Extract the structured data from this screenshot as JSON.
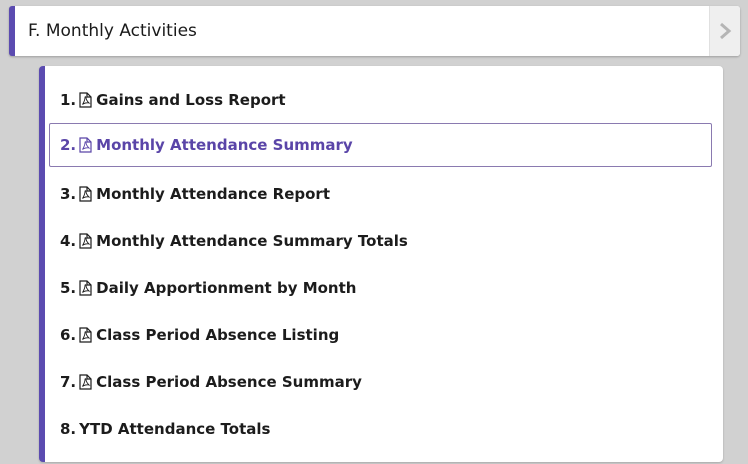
{
  "section": {
    "title": "F. Monthly Activities",
    "chevron_icon": "chevron-right-icon"
  },
  "reports": [
    {
      "number": "1.",
      "label": "Gains and Loss Report",
      "icon": "pdf-icon",
      "active": false
    },
    {
      "number": "2.",
      "label": "Monthly Attendance Summary",
      "icon": "pdf-icon",
      "active": true
    },
    {
      "number": "3.",
      "label": "Monthly Attendance Report",
      "icon": "pdf-icon",
      "active": false
    },
    {
      "number": "4.",
      "label": "Monthly Attendance Summary Totals",
      "icon": "pdf-icon",
      "active": false
    },
    {
      "number": "5.",
      "label": "Daily Apportionment by Month",
      "icon": "pdf-icon",
      "active": false
    },
    {
      "number": "6.",
      "label": "Class Period Absence Listing",
      "icon": "pdf-icon",
      "active": false
    },
    {
      "number": "7.",
      "label": "Class Period Absence Summary",
      "icon": "pdf-icon",
      "active": false
    },
    {
      "number": "8.",
      "label": "YTD Attendance Totals",
      "icon": "",
      "active": false
    }
  ],
  "colors": {
    "accent": "#5b4bb0",
    "active_text": "#5a45a8",
    "background": "#d1d1d1"
  }
}
